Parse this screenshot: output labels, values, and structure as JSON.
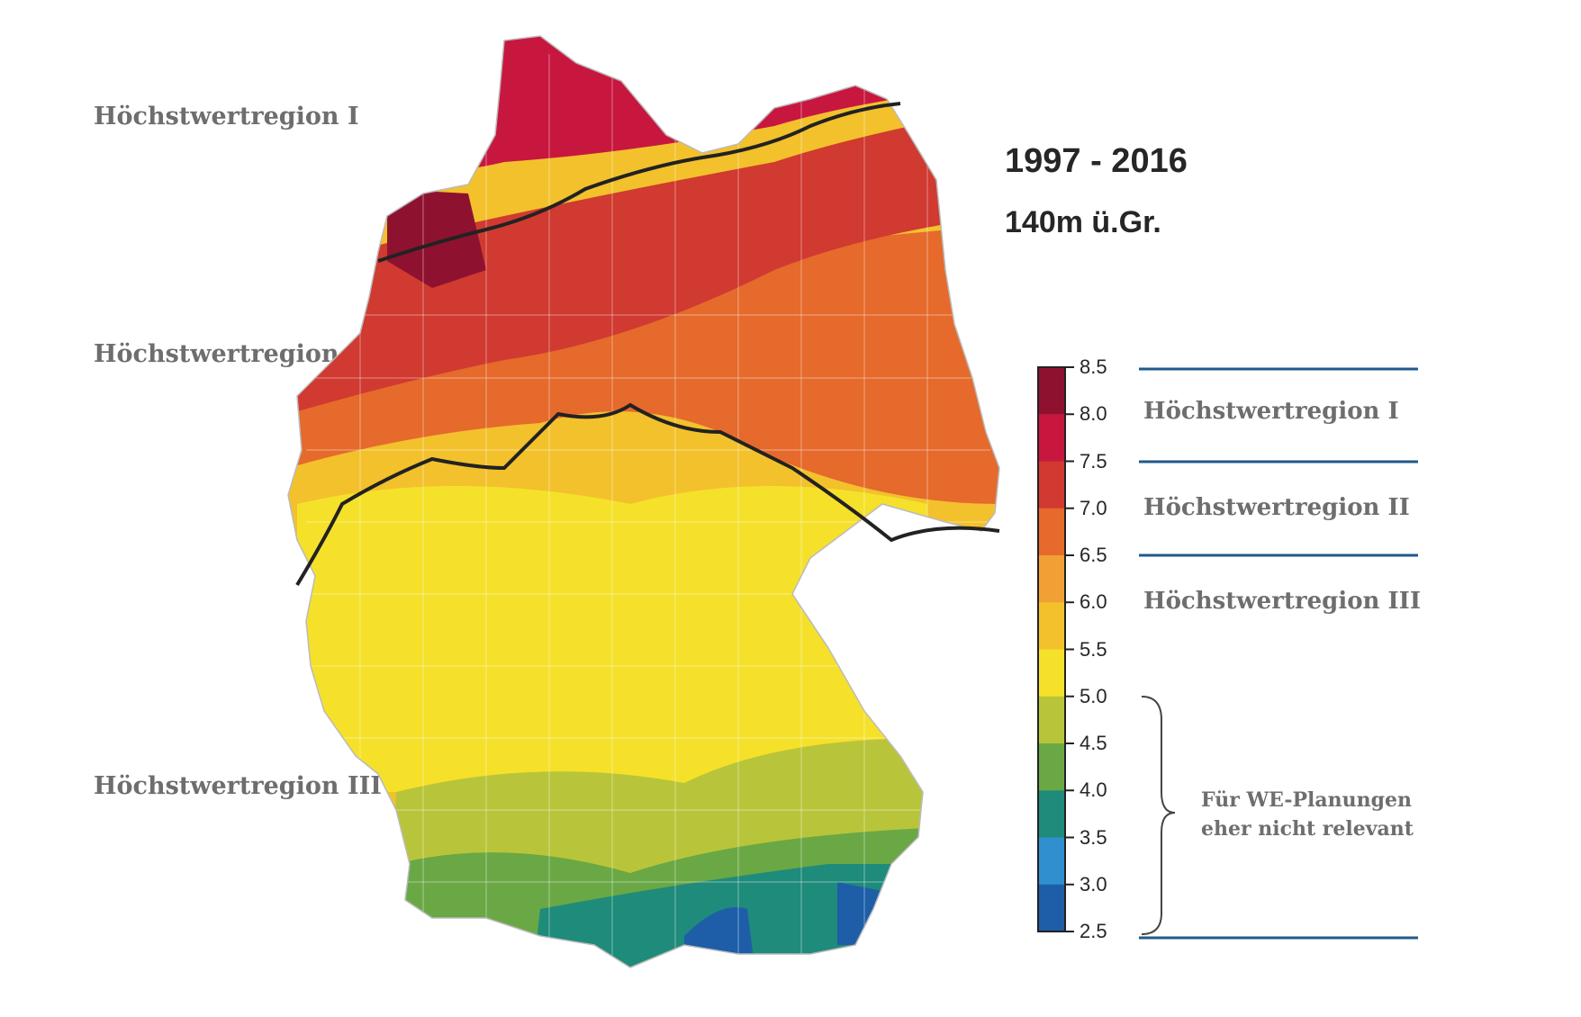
{
  "map": {
    "period": "1997 - 2016",
    "height": "140m ü.Gr.",
    "left_labels": [
      "Höchstwertregion I",
      "Höchstwertregion II",
      "Höchstwertregion III"
    ]
  },
  "legend": {
    "ticks": [
      "8.5",
      "8.0",
      "7.5",
      "7.0",
      "6.5",
      "6.0",
      "5.5",
      "5.0",
      "4.5",
      "4.0",
      "3.5",
      "3.0",
      "2.5"
    ],
    "colors": [
      "#8e1230",
      "#c8173f",
      "#d03a30",
      "#e56a2c",
      "#f0a034",
      "#f3c12c",
      "#f5e12a",
      "#b8c53a",
      "#6aa845",
      "#1f8b7a",
      "#2f8fcf",
      "#1e5ea8"
    ],
    "regions": [
      "Höchstwertregion I",
      "Höchstwertregion II",
      "Höchstwertregion III"
    ],
    "note_line1": "Für WE-Planungen",
    "note_line2": "eher nicht relevant"
  },
  "colors": {
    "line_blue": "#1f5a8c",
    "boundary": "#222222"
  }
}
